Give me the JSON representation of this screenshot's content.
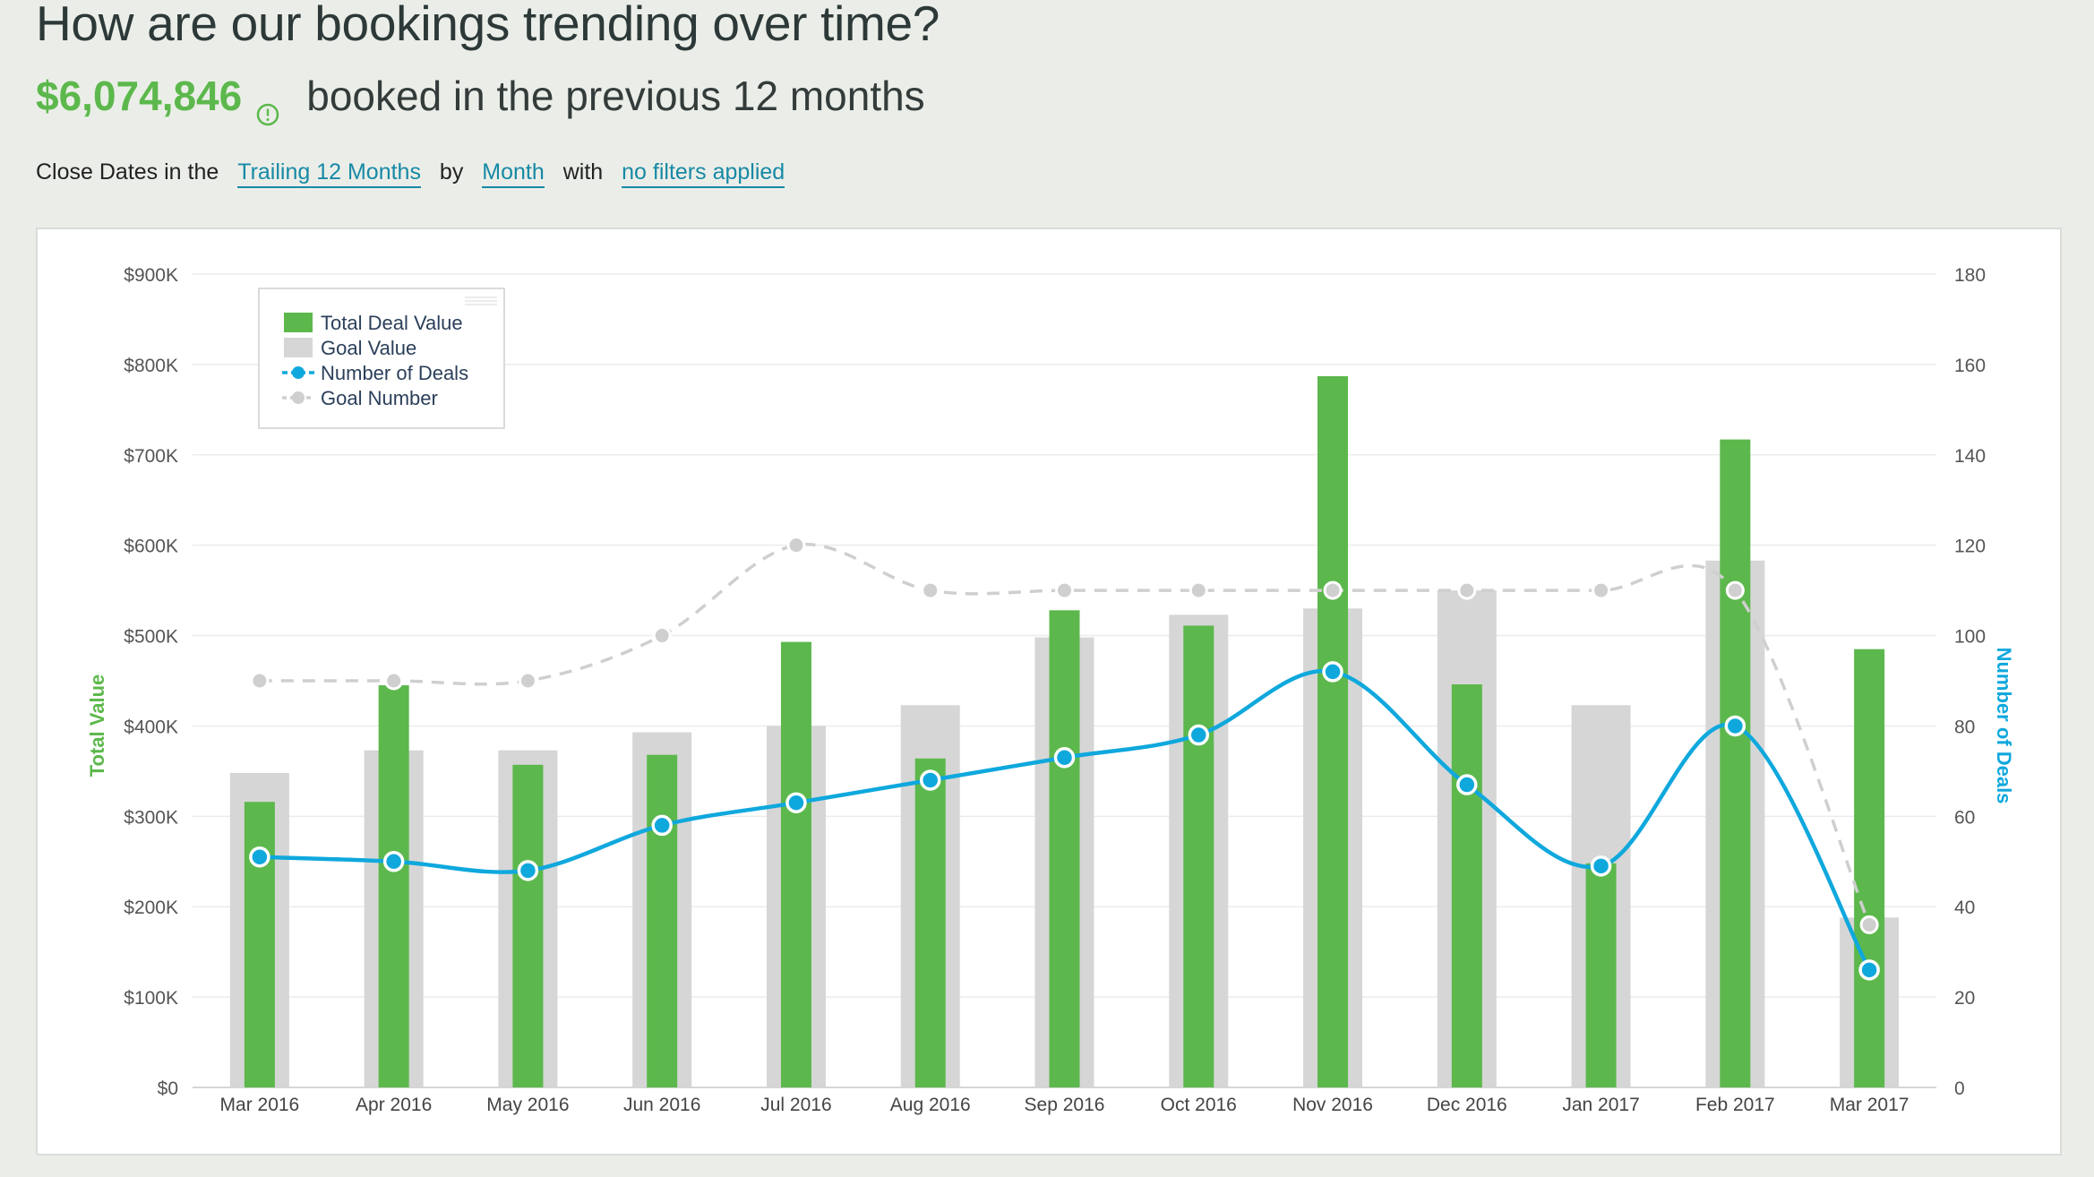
{
  "header": {
    "title": "How are our bookings trending over time?",
    "amount": "$6,074,846",
    "amount_suffix": "booked in the previous 12 months"
  },
  "filters": {
    "prefix": "Close Dates in the",
    "range": "Trailing 12 Months",
    "by": "by",
    "grouping": "Month",
    "with": "with",
    "filter": "no filters applied"
  },
  "colors": {
    "deal_value": "#5cb84c",
    "goal_value": "#d6d6d6",
    "deals_line": "#0fa8dd",
    "goal_line": "#cfcfcf",
    "accent_link": "#1789a6"
  },
  "icons": {
    "info": "info-circle-icon"
  },
  "chart_data": {
    "type": "bar",
    "categories": [
      "Mar 2016",
      "Apr 2016",
      "May 2016",
      "Jun 2016",
      "Jul 2016",
      "Aug 2016",
      "Sep 2016",
      "Oct 2016",
      "Nov 2016",
      "Dec 2016",
      "Jan 2017",
      "Feb 2017",
      "Mar 2017"
    ],
    "series": [
      {
        "name": "Total Deal Value",
        "type": "bar",
        "axis": "left",
        "values": [
          316000,
          445000,
          357000,
          368000,
          493000,
          364000,
          528000,
          511000,
          787000,
          446000,
          248000,
          717000,
          485000
        ]
      },
      {
        "name": "Goal Value",
        "type": "bar",
        "axis": "left",
        "values": [
          348000,
          373000,
          373000,
          393000,
          400000,
          423000,
          498000,
          523000,
          530000,
          550000,
          423000,
          583000,
          188000
        ]
      },
      {
        "name": "Number of Deals",
        "type": "line",
        "axis": "right",
        "values": [
          51,
          50,
          48,
          58,
          63,
          68,
          73,
          78,
          92,
          67,
          49,
          80,
          26
        ]
      },
      {
        "name": "Goal Number",
        "type": "line",
        "axis": "right",
        "dashed": true,
        "values": [
          90,
          90,
          90,
          100,
          120,
          110,
          110,
          110,
          110,
          110,
          110,
          110,
          36
        ]
      }
    ],
    "ylabel": "Total Value",
    "y2label": "Number of Deals",
    "ylim": [
      0,
      900000
    ],
    "y2lim": [
      0,
      180
    ],
    "yticks": [
      "$0",
      "$100K",
      "$200K",
      "$300K",
      "$400K",
      "$500K",
      "$600K",
      "$700K",
      "$800K",
      "$900K"
    ],
    "y2ticks": [
      "0",
      "20",
      "40",
      "60",
      "80",
      "100",
      "120",
      "140",
      "160",
      "180"
    ],
    "legend_position": "top-left",
    "grid": true
  }
}
